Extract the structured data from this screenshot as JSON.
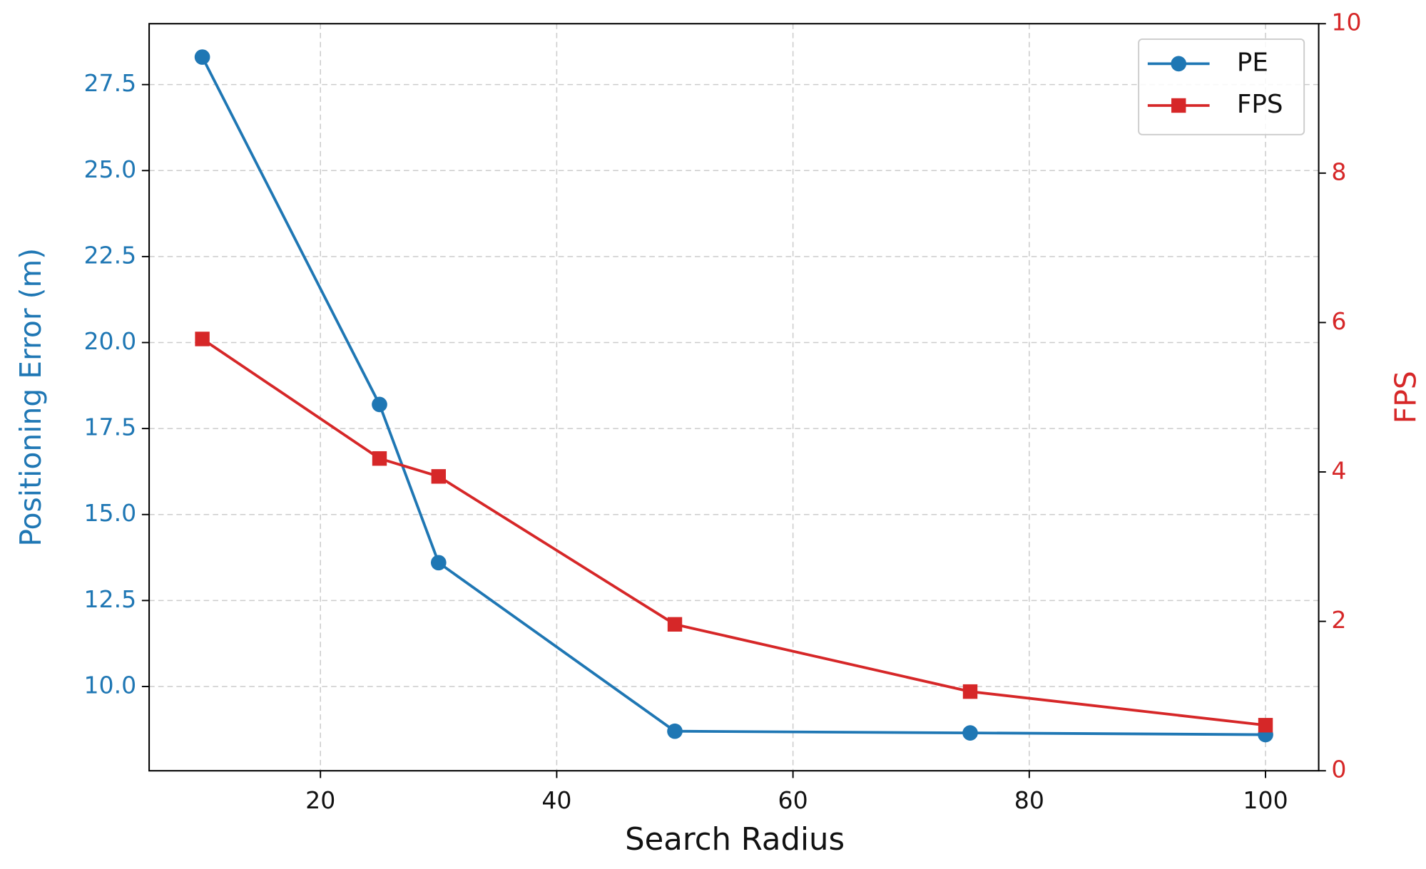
{
  "chart_data": {
    "type": "line",
    "xlabel": "Search Radius",
    "ylabel": "Positioning Error (m)",
    "y2label": "FPS",
    "x": [
      10,
      25,
      30,
      50,
      75,
      100
    ],
    "series": [
      {
        "name": "PE",
        "color": "#1f77b4",
        "marker": "circle",
        "axis": "y",
        "values": [
          28.3,
          18.2,
          13.6,
          8.7,
          8.65,
          8.6
        ]
      },
      {
        "name": "FPS",
        "color": "#d62728",
        "marker": "square",
        "axis": "y2",
        "values": [
          5.78,
          4.18,
          3.94,
          1.96,
          1.06,
          0.61
        ]
      }
    ],
    "xlim": [
      5.5,
      104.5
    ],
    "xticks": [
      20,
      40,
      60,
      80,
      100
    ],
    "ylim": [
      7.55,
      29.27
    ],
    "yticks": [
      {
        "value": 10,
        "label": "10.0"
      },
      {
        "value": 12.5,
        "label": "12.5"
      },
      {
        "value": 15,
        "label": "15.0"
      },
      {
        "value": 17.5,
        "label": "17.5"
      },
      {
        "value": 20,
        "label": "20.0"
      },
      {
        "value": 22.5,
        "label": "22.5"
      },
      {
        "value": 25,
        "label": "25.0"
      },
      {
        "value": 27.5,
        "label": "27.5"
      }
    ],
    "y2lim": [
      0,
      10
    ],
    "y2ticks": [
      0,
      2,
      4,
      6,
      8,
      10
    ],
    "grid": true,
    "legend": "upper right"
  }
}
